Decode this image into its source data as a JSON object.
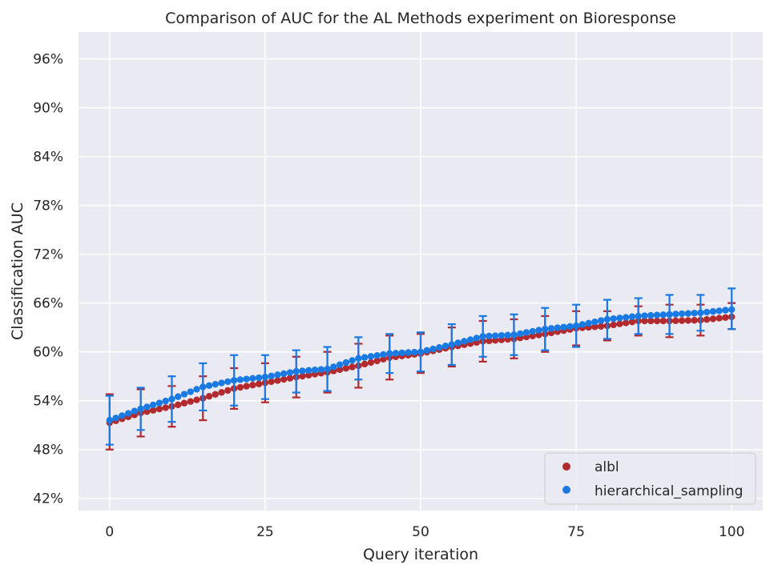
{
  "chart_data": {
    "type": "scatter",
    "title": "Comparison of AUC for the AL Methods experiment on Bioresponse",
    "xlabel": "Query iteration",
    "ylabel": "Classification AUC",
    "xlim": [
      -5,
      105
    ],
    "ylim": [
      40.5,
      99.3
    ],
    "xticks": [
      0,
      25,
      50,
      75,
      100
    ],
    "yticks": [
      42,
      48,
      54,
      60,
      66,
      72,
      78,
      84,
      90,
      96
    ],
    "ytick_suffix": "%",
    "grid": true,
    "legend_position": "bottom-right",
    "background": "#eaeaf2",
    "errorbar_every": 5,
    "series": [
      {
        "name": "albl",
        "color": "#b22a2e",
        "start": 51.3,
        "end": 64.3,
        "errorbars": [
          {
            "x": 0,
            "low": 48.0,
            "high": 54.8
          },
          {
            "x": 5,
            "low": 49.6,
            "high": 55.4
          },
          {
            "x": 10,
            "low": 50.8,
            "high": 55.8
          },
          {
            "x": 15,
            "low": 51.6,
            "high": 57.0
          },
          {
            "x": 20,
            "low": 53.0,
            "high": 58.0
          },
          {
            "x": 25,
            "low": 53.8,
            "high": 58.6
          },
          {
            "x": 30,
            "low": 54.4,
            "high": 59.4
          },
          {
            "x": 35,
            "low": 55.0,
            "high": 60.0
          },
          {
            "x": 40,
            "low": 55.6,
            "high": 61.0
          },
          {
            "x": 45,
            "low": 56.6,
            "high": 62.0
          },
          {
            "x": 50,
            "low": 57.4,
            "high": 62.2
          },
          {
            "x": 55,
            "low": 58.2,
            "high": 63.0
          },
          {
            "x": 60,
            "low": 58.8,
            "high": 63.8
          },
          {
            "x": 65,
            "low": 59.2,
            "high": 64.0
          },
          {
            "x": 70,
            "low": 60.0,
            "high": 64.4
          },
          {
            "x": 75,
            "low": 60.8,
            "high": 65.0
          },
          {
            "x": 80,
            "low": 61.4,
            "high": 65.0
          },
          {
            "x": 85,
            "low": 62.0,
            "high": 65.6
          },
          {
            "x": 90,
            "low": 61.8,
            "high": 65.8
          },
          {
            "x": 95,
            "low": 62.0,
            "high": 65.8
          },
          {
            "x": 100,
            "low": 62.8,
            "high": 66.0
          }
        ]
      },
      {
        "name": "hierarchical_sampling",
        "color": "#1a7ae4",
        "start": 51.6,
        "end": 65.2,
        "errorbars": [
          {
            "x": 0,
            "low": 48.6,
            "high": 54.6
          },
          {
            "x": 5,
            "low": 50.4,
            "high": 55.6
          },
          {
            "x": 10,
            "low": 51.4,
            "high": 57.0
          },
          {
            "x": 15,
            "low": 52.8,
            "high": 58.6
          },
          {
            "x": 20,
            "low": 53.4,
            "high": 59.6
          },
          {
            "x": 25,
            "low": 54.2,
            "high": 59.6
          },
          {
            "x": 30,
            "low": 55.0,
            "high": 60.2
          },
          {
            "x": 35,
            "low": 55.2,
            "high": 60.6
          },
          {
            "x": 40,
            "low": 56.6,
            "high": 61.8
          },
          {
            "x": 45,
            "low": 57.4,
            "high": 62.2
          },
          {
            "x": 50,
            "low": 57.6,
            "high": 62.4
          },
          {
            "x": 55,
            "low": 58.4,
            "high": 63.4
          },
          {
            "x": 60,
            "low": 59.4,
            "high": 64.4
          },
          {
            "x": 65,
            "low": 59.6,
            "high": 64.6
          },
          {
            "x": 70,
            "low": 60.2,
            "high": 65.4
          },
          {
            "x": 75,
            "low": 60.6,
            "high": 65.8
          },
          {
            "x": 80,
            "low": 61.6,
            "high": 66.4
          },
          {
            "x": 85,
            "low": 62.2,
            "high": 66.6
          },
          {
            "x": 90,
            "low": 62.2,
            "high": 67.0
          },
          {
            "x": 95,
            "low": 62.6,
            "high": 67.0
          },
          {
            "x": 100,
            "low": 62.8,
            "high": 67.8
          }
        ]
      }
    ]
  }
}
